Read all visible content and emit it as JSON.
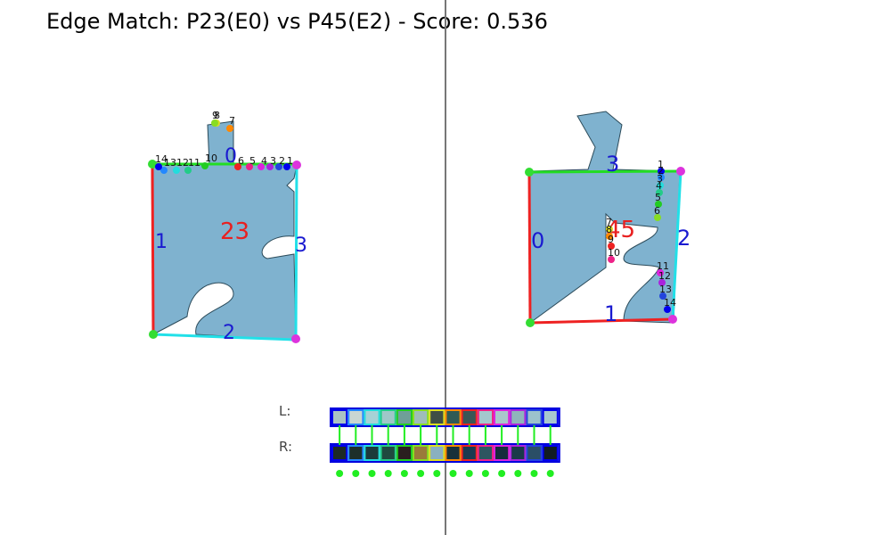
{
  "title": "Edge Match: P23(E0) vs P45(E2)  -  Score: 0.536",
  "row_labels": {
    "left": "L:",
    "right": "R:"
  },
  "left_piece": {
    "id_label": "23",
    "edge_labels": [
      "0",
      "1",
      "2",
      "3"
    ],
    "point_labels": [
      "1",
      "2",
      "3",
      "4",
      "5",
      "6",
      "7",
      "8",
      "9",
      "10",
      "11",
      "12",
      "13",
      "14"
    ],
    "fill_color": "#7fb2cf",
    "edge_colors": [
      "#22dd22",
      "#ee2222",
      "#22e0e8",
      "#22e0e8"
    ]
  },
  "right_piece": {
    "id_label": "45",
    "edge_labels": [
      "0",
      "1",
      "2",
      "3"
    ],
    "point_labels": [
      "1",
      "2",
      "3",
      "4",
      "5",
      "6",
      "7",
      "8",
      "9",
      "10",
      "11",
      "12",
      "13",
      "14"
    ],
    "fill_color": "#7fb2cf",
    "edge_colors": [
      "#ee2222",
      "#ee2222",
      "#22e0e8",
      "#22dd22"
    ]
  },
  "swatches": {
    "left": [
      "#a9c3c3",
      "#c9d6d2",
      "#a6d2d6",
      "#9fc7c8",
      "#6f9f98",
      "#9fbdb9",
      "#3f4f45",
      "#2f5a55",
      "#3a5656",
      "#a4c8cd",
      "#a9c6cb",
      "#8fb4bb",
      "#9cc2cc",
      "#a7c7cf"
    ],
    "right": [
      "#1d2a26",
      "#1d2f2a",
      "#1c3a3c",
      "#1f4a3f",
      "#2a1f1f",
      "#9a7a3a",
      "#8ab0c0",
      "#17303a",
      "#1a3a50",
      "#2e5560",
      "#162c3c",
      "#1a3a4a",
      "#2a4e66",
      "#111c22"
    ],
    "border_colors": [
      "#0000ee",
      "#2288ff",
      "#22dddd",
      "#22cc88",
      "#22cc22",
      "#88dd22",
      "#dddd22",
      "#ff8800",
      "#ee2222",
      "#ee2288",
      "#dd22dd",
      "#aa22dd",
      "#2244dd",
      "#0000ee"
    ],
    "dot_color": "#22ee22"
  }
}
